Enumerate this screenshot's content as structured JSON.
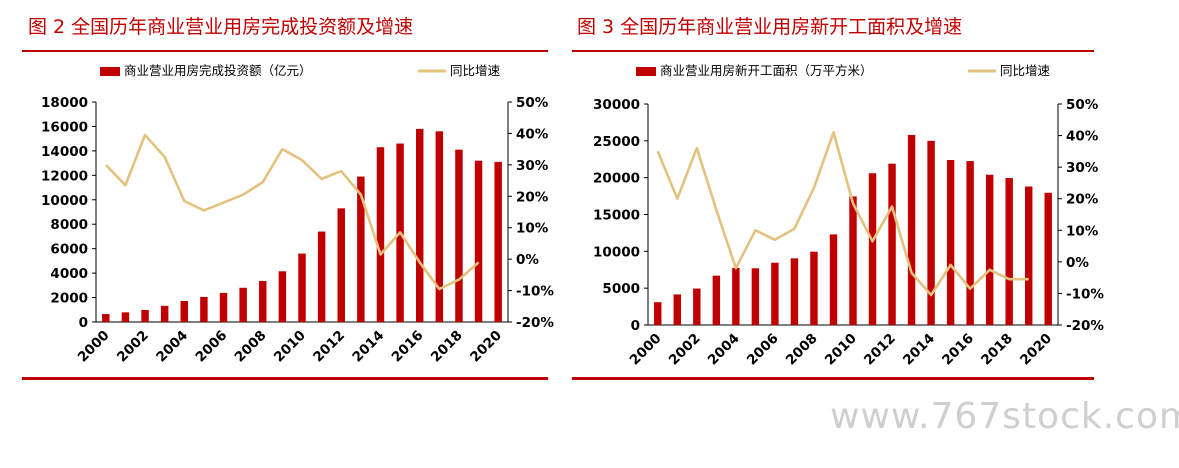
{
  "watermark": "www.767stock.com",
  "chart_data": [
    {
      "type": "bar",
      "title": "图 2   全国历年商业营业用房完成投资额及增速",
      "series": [
        {
          "name": "商业营业用房完成投资额（亿元）",
          "type": "bar",
          "axis": "left",
          "values": [
            650,
            790,
            980,
            1320,
            1720,
            2050,
            2380,
            2800,
            3350,
            4150,
            5600,
            7400,
            9300,
            11900,
            14300,
            14600,
            15800,
            15600,
            14100,
            13200,
            13100
          ]
        },
        {
          "name": "同比增速",
          "type": "line",
          "axis": "right",
          "values": [
            30.0,
            23.5,
            39.5,
            32.5,
            18.5,
            15.5,
            18.0,
            20.5,
            24.5,
            35.0,
            31.5,
            25.5,
            28.0,
            20.5,
            1.5,
            8.5,
            -1.0,
            -9.5,
            -6.5,
            -1.0,
            null
          ]
        }
      ],
      "x": [
        2000,
        2001,
        2002,
        2003,
        2004,
        2005,
        2006,
        2007,
        2008,
        2009,
        2010,
        2011,
        2012,
        2013,
        2014,
        2015,
        2016,
        2017,
        2018,
        2019,
        2020
      ],
      "xtick_labels": [
        "2000",
        "2002",
        "2004",
        "2006",
        "2008",
        "2010",
        "2012",
        "2014",
        "2016",
        "2018",
        "2020"
      ],
      "ylim": [
        0,
        18000
      ],
      "yticks": [
        "0",
        "2000",
        "4000",
        "6000",
        "8000",
        "10000",
        "12000",
        "14000",
        "16000",
        "18000"
      ],
      "y2lim": [
        -20,
        50
      ],
      "y2ticks": [
        "-20%",
        "-10%",
        "0%",
        "10%",
        "20%",
        "30%",
        "40%",
        "50%"
      ],
      "legend_placement": "top",
      "grid": false,
      "colors": {
        "bar": "#c00000",
        "line": "#e3c27f",
        "title": "#c00000"
      }
    },
    {
      "type": "bar",
      "title": "图 3   全国历年商业营业用房新开工面积及增速",
      "series": [
        {
          "name": "商业营业用房新开工面积（万平方米）",
          "type": "bar",
          "axis": "left",
          "values": [
            3100,
            4150,
            4950,
            6700,
            7750,
            7700,
            8450,
            9050,
            9950,
            12300,
            17450,
            20600,
            21900,
            25800,
            25000,
            22400,
            22250,
            20400,
            19950,
            18800,
            17950
          ]
        },
        {
          "name": "同比增速",
          "type": "line",
          "axis": "right",
          "values": [
            35.0,
            20.0,
            36.0,
            16.5,
            -2.0,
            10.0,
            7.0,
            10.5,
            23.5,
            41.0,
            18.5,
            6.5,
            17.5,
            -3.5,
            -10.5,
            -1.0,
            -8.5,
            -2.5,
            -5.5,
            -5.5,
            null
          ]
        }
      ],
      "x": [
        2000,
        2001,
        2002,
        2003,
        2004,
        2005,
        2006,
        2007,
        2008,
        2009,
        2010,
        2011,
        2012,
        2013,
        2014,
        2015,
        2016,
        2017,
        2018,
        2019,
        2020
      ],
      "xtick_labels": [
        "2000",
        "2002",
        "2004",
        "2006",
        "2008",
        "2010",
        "2012",
        "2014",
        "2016",
        "2018",
        "2020"
      ],
      "ylim": [
        0,
        30000
      ],
      "yticks": [
        "0",
        "5000",
        "10000",
        "15000",
        "20000",
        "25000",
        "30000"
      ],
      "y2lim": [
        -20,
        50
      ],
      "y2ticks": [
        "-20%",
        "-10%",
        "0%",
        "10%",
        "20%",
        "30%",
        "40%",
        "50%"
      ],
      "legend_placement": "top",
      "grid": false,
      "colors": {
        "bar": "#c00000",
        "line": "#e3c27f",
        "title": "#c00000"
      }
    }
  ]
}
